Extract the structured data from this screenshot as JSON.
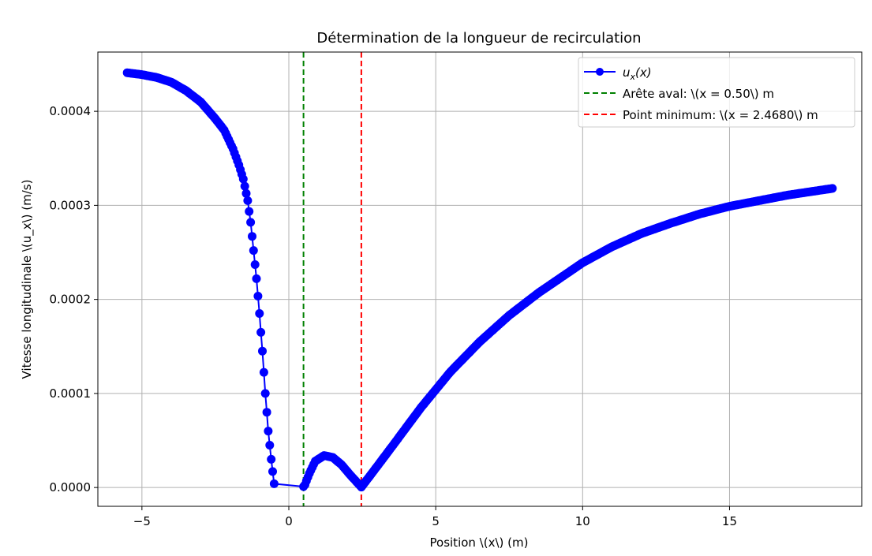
{
  "chart_data": {
    "type": "line",
    "title": "Détermination de la longueur de recirculation",
    "xlabel": "Position \\(x\\) (m)",
    "ylabel": "Vitesse longitudinale \\(u_x\\) (m/s)",
    "xlim": [
      -6.5,
      19.5
    ],
    "ylim": [
      -2e-05,
      0.000463
    ],
    "x_ticks": [
      -5,
      0,
      5,
      10,
      15
    ],
    "x_tick_labels": [
      "−5",
      "0",
      "5",
      "10",
      "15"
    ],
    "y_ticks": [
      0.0,
      0.0001,
      0.0002,
      0.0003,
      0.0004
    ],
    "y_tick_labels": [
      "0.0000",
      "0.0001",
      "0.0002",
      "0.0003",
      "0.0004"
    ],
    "grid": true,
    "legend_position": "top-right",
    "series": [
      {
        "name": "u_x(x)",
        "color": "#0000ff",
        "marker": "circle",
        "anchors": [
          [
            -5.5,
            0.000441
          ],
          [
            -5.0,
            0.000439
          ],
          [
            -4.5,
            0.000436
          ],
          [
            -4.0,
            0.000431
          ],
          [
            -3.5,
            0.000422
          ],
          [
            -3.0,
            0.00041
          ],
          [
            -2.5,
            0.000392
          ],
          [
            -2.2,
            0.00038
          ],
          [
            -1.9,
            0.00036
          ],
          [
            -1.7,
            0.000343
          ],
          [
            -1.55,
            0.000328
          ],
          [
            -1.4,
            0.000305
          ],
          [
            -1.3,
            0.000282
          ],
          [
            -1.2,
            0.000252
          ],
          [
            -1.1,
            0.000222
          ],
          [
            -1.0,
            0.000185
          ],
          [
            -0.9,
            0.000145
          ],
          [
            -0.8,
            0.0001
          ],
          [
            -0.7,
            6e-05
          ],
          [
            -0.6,
            3e-05
          ],
          [
            -0.5,
            4e-06
          ],
          [
            0.5,
            1e-06
          ],
          [
            0.55,
            3e-06
          ],
          [
            0.7,
            1.5e-05
          ],
          [
            0.9,
            2.8e-05
          ],
          [
            1.2,
            3.4e-05
          ],
          [
            1.5,
            3.2e-05
          ],
          [
            1.8,
            2.4e-05
          ],
          [
            2.1,
            1.3e-05
          ],
          [
            2.468,
            5e-07
          ],
          [
            2.8,
            1.4e-05
          ],
          [
            3.5,
            4.3e-05
          ],
          [
            4.5,
            8.5e-05
          ],
          [
            5.5,
            0.000123
          ],
          [
            6.5,
            0.000155
          ],
          [
            7.5,
            0.000183
          ],
          [
            8.5,
            0.000207
          ],
          [
            10.0,
            0.000239
          ],
          [
            11.0,
            0.000256
          ],
          [
            12.0,
            0.00027
          ],
          [
            13.0,
            0.000281
          ],
          [
            14.0,
            0.000291
          ],
          [
            15.0,
            0.000299
          ],
          [
            16.0,
            0.000305
          ],
          [
            17.0,
            0.000311
          ],
          [
            18.5,
            0.000318
          ]
        ]
      }
    ],
    "vlines": [
      {
        "name": "Arête aval: \\(x = 0.50\\) m",
        "x": 0.5,
        "color": "#008000",
        "style": "dashed"
      },
      {
        "name": "Point minimum: \\(x = 2.4680\\) m",
        "x": 2.468,
        "color": "#ff0000",
        "style": "dashed"
      }
    ],
    "legend": [
      "u_x(x)",
      "Arête aval: \\(x = 0.50\\) m",
      "Point minimum: \\(x = 2.4680\\) m"
    ]
  }
}
